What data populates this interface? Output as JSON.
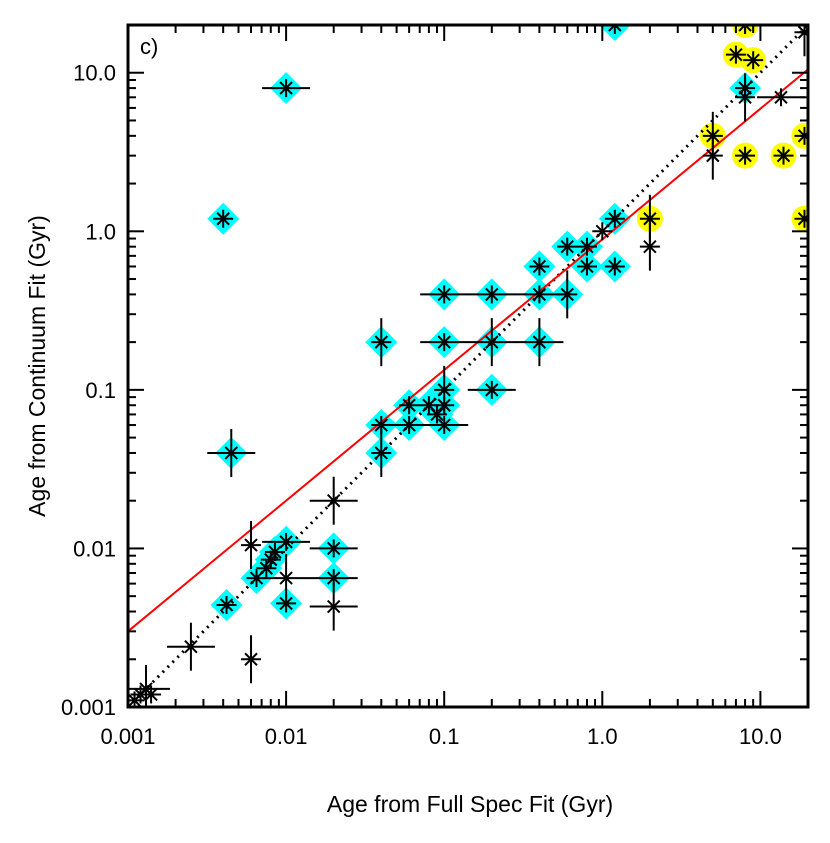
{
  "chart_data": {
    "type": "scatter",
    "title": "",
    "panel_label": "c)",
    "xlabel": "Age from Full Spec Fit  (Gyr)",
    "ylabel": "Age from Continuum Fit  (Gyr)",
    "xscale": "log",
    "yscale": "log",
    "xlim": [
      0.001,
      20
    ],
    "ylim": [
      0.001,
      20
    ],
    "x_ticks": [
      {
        "value": 0.001,
        "label": "0.001"
      },
      {
        "value": 0.01,
        "label": "0.01"
      },
      {
        "value": 0.1,
        "label": "0.1"
      },
      {
        "value": 1,
        "label": "1.0"
      },
      {
        "value": 10,
        "label": "10.0"
      }
    ],
    "y_ticks": [
      {
        "value": 0.001,
        "label": "0.001"
      },
      {
        "value": 0.01,
        "label": "0.01"
      },
      {
        "value": 0.1,
        "label": "0.1"
      },
      {
        "value": 1,
        "label": "1.0"
      },
      {
        "value": 10,
        "label": "10.0"
      }
    ],
    "colors": {
      "cyan_marker": "#00ffff",
      "yellow_marker": "#ffff00",
      "fit_line": "#ff0000",
      "points": "#000000"
    },
    "series": [
      {
        "name": "cyan-highlighted",
        "marker": "diamond",
        "points": [
          {
            "x": 0.01,
            "y": 8.0,
            "xerr": 1.0,
            "yerr": 0
          },
          {
            "x": 0.004,
            "y": 1.2,
            "xerr": 0,
            "yerr": 0
          },
          {
            "x": 0.0045,
            "y": 0.04,
            "xerr": 1,
            "yerr": 1
          },
          {
            "x": 0.04,
            "y": 0.2,
            "xerr": 0,
            "yerr": 1
          },
          {
            "x": 0.04,
            "y": 0.06,
            "xerr": 0,
            "yerr": 0
          },
          {
            "x": 0.04,
            "y": 0.04,
            "xerr": 0,
            "yerr": 1
          },
          {
            "x": 0.06,
            "y": 0.08,
            "xerr": 0,
            "yerr": 0
          },
          {
            "x": 0.06,
            "y": 0.06,
            "xerr": 1,
            "yerr": 0
          },
          {
            "x": 0.08,
            "y": 0.08,
            "xerr": 0,
            "yerr": 0
          },
          {
            "x": 0.09,
            "y": 0.07,
            "xerr": 0,
            "yerr": 0
          },
          {
            "x": 0.1,
            "y": 0.1,
            "xerr": 0,
            "yerr": 1
          },
          {
            "x": 0.1,
            "y": 0.08,
            "xerr": 0,
            "yerr": 0
          },
          {
            "x": 0.1,
            "y": 0.06,
            "xerr": 1,
            "yerr": 0
          },
          {
            "x": 0.1,
            "y": 0.4,
            "xerr": 1,
            "yerr": 0
          },
          {
            "x": 0.1,
            "y": 0.2,
            "xerr": 1,
            "yerr": 0
          },
          {
            "x": 0.2,
            "y": 0.4,
            "xerr": 1,
            "yerr": 0
          },
          {
            "x": 0.2,
            "y": 0.2,
            "xerr": 1,
            "yerr": 1
          },
          {
            "x": 0.2,
            "y": 0.1,
            "xerr": 1,
            "yerr": 0
          },
          {
            "x": 0.4,
            "y": 0.6,
            "xerr": 0,
            "yerr": 0
          },
          {
            "x": 0.4,
            "y": 0.4,
            "xerr": 1,
            "yerr": 0
          },
          {
            "x": 0.4,
            "y": 0.2,
            "xerr": 1,
            "yerr": 1
          },
          {
            "x": 0.6,
            "y": 0.8,
            "xerr": 0,
            "yerr": 0
          },
          {
            "x": 0.6,
            "y": 0.4,
            "xerr": 0,
            "yerr": 1
          },
          {
            "x": 0.8,
            "y": 0.8,
            "xerr": 0,
            "yerr": 0
          },
          {
            "x": 0.8,
            "y": 0.6,
            "xerr": 0,
            "yerr": 0
          },
          {
            "x": 1.2,
            "y": 1.2,
            "xerr": 0,
            "yerr": 0
          },
          {
            "x": 1.2,
            "y": 0.6,
            "xerr": 0,
            "yerr": 0
          },
          {
            "x": 1.2,
            "y": 20.0,
            "xerr": 0,
            "yerr": 0
          },
          {
            "x": 8.0,
            "y": 8.0,
            "xerr": 0,
            "yerr": 0
          },
          {
            "x": 0.0042,
            "y": 0.0044,
            "xerr": 0,
            "yerr": 0
          },
          {
            "x": 0.0065,
            "y": 0.0065,
            "xerr": 0,
            "yerr": 0
          },
          {
            "x": 0.0075,
            "y": 0.0075,
            "xerr": 0,
            "yerr": 0
          },
          {
            "x": 0.008,
            "y": 0.0085,
            "xerr": 0,
            "yerr": 0
          },
          {
            "x": 0.0085,
            "y": 0.0095,
            "xerr": 0,
            "yerr": 0
          },
          {
            "x": 0.01,
            "y": 0.011,
            "xerr": 1,
            "yerr": 0
          },
          {
            "x": 0.01,
            "y": 0.0045,
            "xerr": 0,
            "yerr": 0
          },
          {
            "x": 0.02,
            "y": 0.01,
            "xerr": 1,
            "yerr": 0
          },
          {
            "x": 0.02,
            "y": 0.0065,
            "xerr": 1,
            "yerr": 0
          }
        ]
      },
      {
        "name": "yellow-highlighted",
        "marker": "circle",
        "points": [
          {
            "x": 2.0,
            "y": 1.2,
            "xerr": 0,
            "yerr": 1
          },
          {
            "x": 5.0,
            "y": 4.0,
            "xerr": 0,
            "yerr": 1
          },
          {
            "x": 7.0,
            "y": 13.0,
            "xerr": 0,
            "yerr": 0
          },
          {
            "x": 9.0,
            "y": 12.0,
            "xerr": 0,
            "yerr": 0
          },
          {
            "x": 8.0,
            "y": 20.0,
            "xerr": 0,
            "yerr": 0
          },
          {
            "x": 8.0,
            "y": 3.0,
            "xerr": 0,
            "yerr": 0
          },
          {
            "x": 14.0,
            "y": 3.0,
            "xerr": 0,
            "yerr": 0
          },
          {
            "x": 19.0,
            "y": 4.0,
            "xerr": 0,
            "yerr": 0
          },
          {
            "x": 19.0,
            "y": 1.2,
            "xerr": 0,
            "yerr": 0
          }
        ]
      },
      {
        "name": "other",
        "marker": "asterisk",
        "points": [
          {
            "x": 0.0011,
            "y": 0.0011,
            "xerr": 0,
            "yerr": 0
          },
          {
            "x": 0.0012,
            "y": 0.0012,
            "xerr": 0,
            "yerr": 0
          },
          {
            "x": 0.0013,
            "y": 0.0013,
            "xerr": 1,
            "yerr": 1
          },
          {
            "x": 0.0014,
            "y": 0.0012,
            "xerr": 0,
            "yerr": 0
          },
          {
            "x": 0.0025,
            "y": 0.0024,
            "xerr": 1,
            "yerr": 1
          },
          {
            "x": 0.006,
            "y": 0.002,
            "xerr": 0,
            "yerr": 1
          },
          {
            "x": 0.006,
            "y": 0.0105,
            "xerr": 0,
            "yerr": 1
          },
          {
            "x": 0.01,
            "y": 0.0065,
            "xerr": 1,
            "yerr": 1
          },
          {
            "x": 0.02,
            "y": 0.02,
            "xerr": 1,
            "yerr": 1
          },
          {
            "x": 0.02,
            "y": 0.0043,
            "xerr": 1,
            "yerr": 1
          },
          {
            "x": 1.0,
            "y": 1.0,
            "xerr": 0,
            "yerr": 0
          },
          {
            "x": 2.0,
            "y": 0.8,
            "xerr": 0,
            "yerr": 1
          },
          {
            "x": 5.0,
            "y": 3.0,
            "xerr": 0,
            "yerr": 1
          },
          {
            "x": 8.0,
            "y": 7.0,
            "xerr": 0,
            "yerr": 1
          },
          {
            "x": 13.5,
            "y": 7.0,
            "xerr": 1,
            "yerr": 0
          },
          {
            "x": 19.0,
            "y": 18.0,
            "xerr": 0,
            "yerr": 1
          }
        ]
      }
    ],
    "lines": [
      {
        "name": "one-to-one",
        "style": "dotted",
        "color": "#000000",
        "x": [
          0.001,
          20
        ],
        "y": [
          0.001,
          20
        ]
      },
      {
        "name": "best-fit",
        "style": "solid",
        "color": "#ff0000",
        "x": [
          0.001,
          20
        ],
        "y": [
          0.003,
          10.5
        ]
      }
    ]
  }
}
